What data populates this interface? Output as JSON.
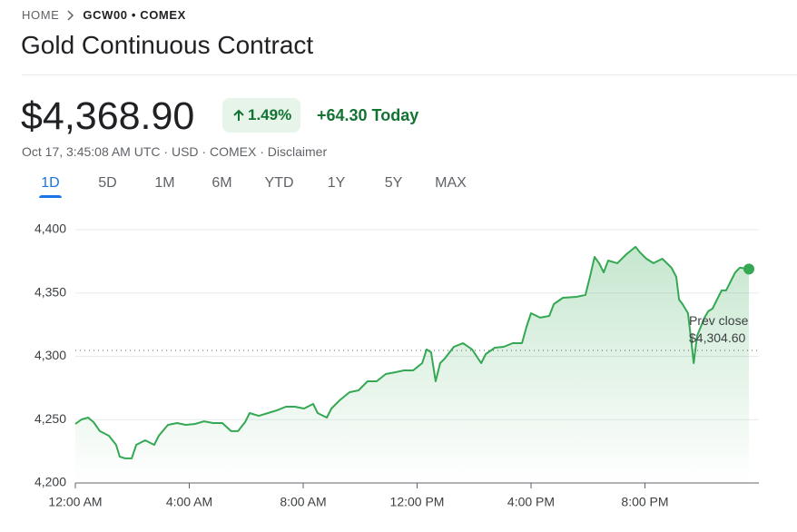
{
  "breadcrumb": {
    "home": "HOME",
    "symbol": "GCW00 • COMEX"
  },
  "title": "Gold Continuous Contract",
  "quote": {
    "price": "$4,368.90",
    "change_percent": "1.49%",
    "change": "+64.30 Today"
  },
  "meta": [
    "Oct 17, 3:45:08 AM UTC",
    "USD",
    "COMEX",
    "Disclaimer"
  ],
  "tabs": [
    "1D",
    "5D",
    "1M",
    "6M",
    "YTD",
    "1Y",
    "5Y",
    "MAX"
  ],
  "selected_tab_index": 0,
  "chart_data": {
    "type": "line",
    "color": "#34a853",
    "x": [
      0,
      0.22,
      0.45,
      0.64,
      0.86,
      1.18,
      1.43,
      1.56,
      1.75,
      1.98,
      2.14,
      2.45,
      2.77,
      2.93,
      3.25,
      3.57,
      3.88,
      4.2,
      4.52,
      4.84,
      5.16,
      5.47,
      5.71,
      5.96,
      6.12,
      6.44,
      6.76,
      7.07,
      7.39,
      7.71,
      8.03,
      8.35,
      8.51,
      8.83,
      8.99,
      9.31,
      9.63,
      9.94,
      10.26,
      10.58,
      10.9,
      11.22,
      11.54,
      11.86,
      12.18,
      12.33,
      12.49,
      12.65,
      12.81,
      12.97,
      13.29,
      13.61,
      13.93,
      14.25,
      14.41,
      14.73,
      15.04,
      15.36,
      15.68,
      15.84,
      16,
      16.32,
      16.64,
      16.8,
      17.12,
      17.59,
      17.91,
      18.07,
      18.23,
      18.39,
      18.55,
      18.71,
      19.03,
      19.35,
      19.67,
      19.82,
      20.05,
      20.3,
      20.61,
      20.93,
      21.1,
      21.2,
      21.32,
      21.51,
      21.64,
      21.71,
      21.83,
      21.96,
      22.09,
      22.22,
      22.37,
      22.53,
      22.69,
      22.85,
      23.01,
      23.17,
      23.33,
      23.65
    ],
    "values": [
      4246.6,
      4250.2,
      4251.6,
      4248.0,
      4240.9,
      4237.3,
      4230.1,
      4220.8,
      4219.4,
      4219.4,
      4230.1,
      4233.7,
      4230.1,
      4237.3,
      4245.9,
      4247.3,
      4245.9,
      4246.6,
      4248.7,
      4247.3,
      4247.3,
      4240.9,
      4240.9,
      4248.0,
      4255.2,
      4253.0,
      4255.2,
      4257.3,
      4260.2,
      4260.2,
      4258.8,
      4262.4,
      4255.2,
      4251.6,
      4258.8,
      4265.9,
      4271.7,
      4273.1,
      4280.3,
      4280.3,
      4286.0,
      4287.4,
      4288.9,
      4288.9,
      4294.6,
      4305.4,
      4303.2,
      4280.3,
      4294.6,
      4298.2,
      4307.5,
      4310.4,
      4305.4,
      4294.6,
      4301.8,
      4306.8,
      4307.5,
      4310.4,
      4310.4,
      4323.3,
      4334.0,
      4330.5,
      4331.9,
      4341.2,
      4346.2,
      4346.9,
      4348.4,
      4362.7,
      4378.5,
      4373.5,
      4366.3,
      4375.6,
      4373.5,
      4380.6,
      4386.4,
      4382.1,
      4377.0,
      4373.5,
      4377.0,
      4369.9,
      4362.7,
      4344.8,
      4341.2,
      4334.0,
      4309.0,
      4294.6,
      4316.1,
      4323.3,
      4330.5,
      4335.5,
      4337.6,
      4344.8,
      4352.0,
      4352.0,
      4359.1,
      4366.3,
      4369.9,
      4368.9
    ],
    "xlim": [
      0,
      24
    ],
    "xticks": [
      {
        "value": 0,
        "label": "12:00 AM"
      },
      {
        "value": 4,
        "label": "4:00 AM"
      },
      {
        "value": 8,
        "label": "8:00 AM"
      },
      {
        "value": 12,
        "label": "12:00 PM"
      },
      {
        "value": 16,
        "label": "4:00 PM"
      },
      {
        "value": 20,
        "label": "8:00 PM"
      }
    ],
    "ylim": [
      4200,
      4410
    ],
    "yticks": [
      {
        "value": 4200,
        "label": "4,200"
      },
      {
        "value": 4250,
        "label": "4,250"
      },
      {
        "value": 4300,
        "label": "4,300"
      },
      {
        "value": 4350,
        "label": "4,350"
      },
      {
        "value": 4400,
        "label": "4,400"
      }
    ],
    "grid": true,
    "prev_close": {
      "label": "Prev close",
      "value": 4304.6,
      "value_label": "$4,304.60"
    }
  }
}
